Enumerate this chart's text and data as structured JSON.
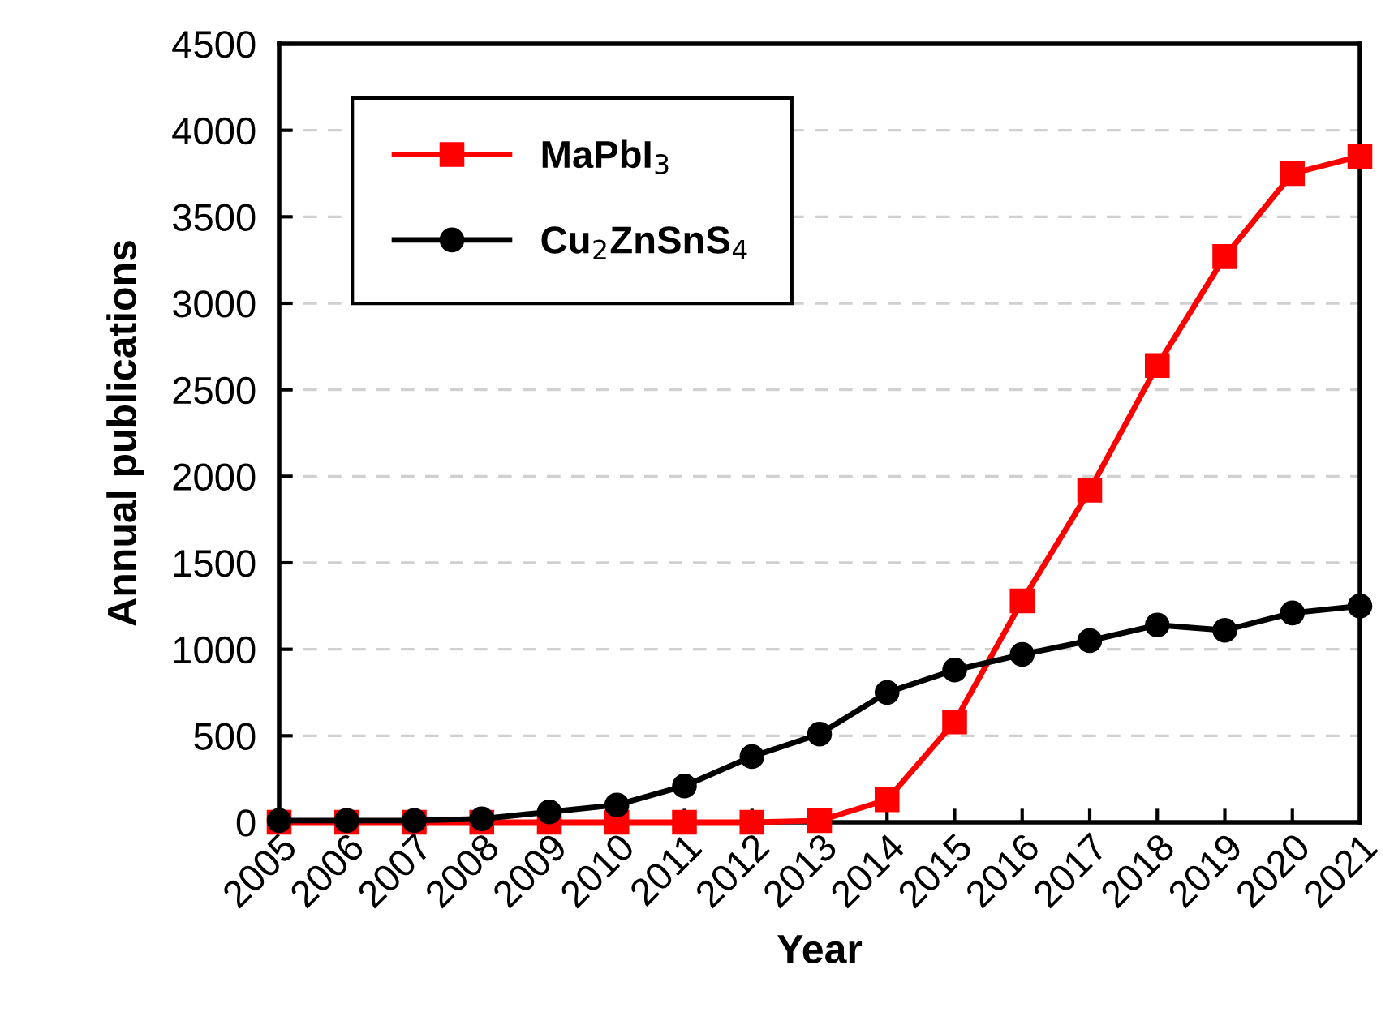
{
  "chart_data": {
    "type": "line",
    "xlabel": "Year",
    "ylabel": "Annual publications",
    "x": [
      2005,
      2006,
      2007,
      2008,
      2009,
      2010,
      2011,
      2012,
      2013,
      2014,
      2015,
      2016,
      2017,
      2018,
      2019,
      2020,
      2021
    ],
    "series": [
      {
        "name": "MaPbI$_{3}$",
        "color": "#ff0000",
        "marker": "square",
        "values": [
          0,
          0,
          0,
          0,
          0,
          0,
          0,
          0,
          10,
          130,
          580,
          1280,
          1920,
          2640,
          3270,
          3750,
          3850
        ]
      },
      {
        "name": "Cu$_{2}$ZnSnS$_{4}$",
        "color": "#000000",
        "marker": "circle",
        "values": [
          10,
          10,
          10,
          20,
          60,
          100,
          210,
          380,
          510,
          750,
          880,
          970,
          1050,
          1140,
          1110,
          1210,
          1250
        ]
      }
    ],
    "xlim": [
      2005,
      2021
    ],
    "xticks": [
      2005,
      2006,
      2007,
      2008,
      2009,
      2010,
      2011,
      2012,
      2013,
      2014,
      2015,
      2016,
      2017,
      2018,
      2019,
      2020,
      2021
    ],
    "ylim": [
      0,
      4500
    ],
    "yticks": [
      0,
      500,
      1000,
      1500,
      2000,
      2500,
      3000,
      3500,
      4000,
      4500
    ],
    "grid": "y",
    "legend": "top left",
    "line_style": "solid"
  }
}
